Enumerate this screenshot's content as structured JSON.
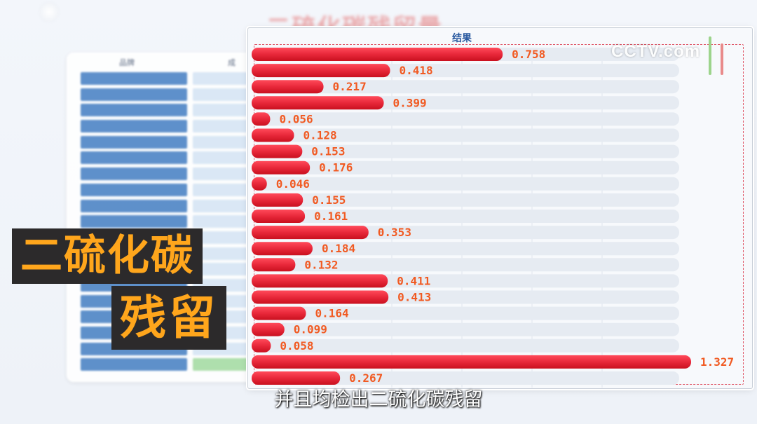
{
  "background_title": "二硫化碳残留量",
  "background_table": {
    "headers": [
      "品牌",
      "成"
    ]
  },
  "chart_title": "结果",
  "logo": "CCTV.com",
  "caption": {
    "line1": "二硫化碳",
    "line2": "残留"
  },
  "subtitle": "并且均检出二硫化碳残留",
  "colors": {
    "bar": "#e8283a",
    "value_label": "#f15a22",
    "caption_text": "#ffa61c",
    "caption_bg": "#2c2a2b"
  },
  "chart_data": {
    "type": "bar",
    "orientation": "horizontal",
    "title": "结果",
    "values": [
      0.758,
      0.418,
      0.217,
      0.399,
      0.056,
      0.128,
      0.153,
      0.176,
      0.046,
      0.155,
      0.161,
      0.353,
      0.184,
      0.132,
      0.411,
      0.413,
      0.164,
      0.099,
      0.058,
      1.327,
      0.267
    ],
    "value_labels": [
      "0.758",
      "0.418",
      "0.217",
      "0.399",
      "0.056",
      "0.128",
      "0.153",
      "0.176",
      "0.046",
      "0.155",
      "0.161",
      "0.353",
      "0.184",
      "0.132",
      "0.411",
      "0.413",
      "0.164",
      "0.099",
      "0.058",
      "1.327",
      "0.267"
    ],
    "xlim": [
      0,
      1.327
    ],
    "grid": true
  }
}
